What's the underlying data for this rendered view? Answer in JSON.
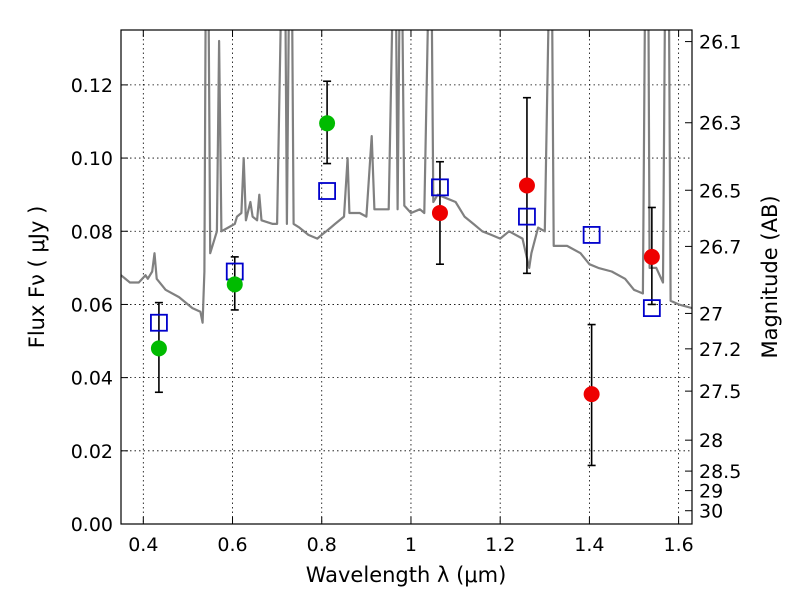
{
  "chart_data": {
    "type": "scatter",
    "title": "",
    "xlabel": "Wavelength  λ (μm)",
    "ylabel": "Flux  Fν  ( μJy )",
    "y2label": "Magnitude (AB)",
    "xlim": [
      0.35,
      1.63
    ],
    "ylim": [
      0.0,
      0.135
    ],
    "grid": true,
    "legend": "none",
    "colors": {
      "template": "#808080",
      "model": "#0000cc",
      "optical": "#00bb00",
      "nir": "#ee0000",
      "errorbar": "#000000"
    },
    "x_ticks": [
      {
        "value": 0.4,
        "label": "0.4"
      },
      {
        "value": 0.6,
        "label": "0.6"
      },
      {
        "value": 0.8,
        "label": "0.8"
      },
      {
        "value": 1.0,
        "label": "1"
      },
      {
        "value": 1.2,
        "label": "1.2"
      },
      {
        "value": 1.4,
        "label": "1.4"
      },
      {
        "value": 1.6,
        "label": "1.6"
      }
    ],
    "y_ticks": [
      {
        "value": 0.0,
        "label": "0.00"
      },
      {
        "value": 0.02,
        "label": "0.02"
      },
      {
        "value": 0.04,
        "label": "0.04"
      },
      {
        "value": 0.06,
        "label": "0.06"
      },
      {
        "value": 0.08,
        "label": "0.08"
      },
      {
        "value": 0.1,
        "label": "0.10"
      },
      {
        "value": 0.12,
        "label": "0.12"
      }
    ],
    "mag_ticks": [
      {
        "value": 26.1,
        "label": "26.1"
      },
      {
        "value": 26.3,
        "label": "26.3"
      },
      {
        "value": 26.5,
        "label": "26.5"
      },
      {
        "value": 26.7,
        "label": "26.7"
      },
      {
        "value": 27.0,
        "label": "27"
      },
      {
        "value": 27.2,
        "label": "27.2"
      },
      {
        "value": 27.5,
        "label": "27.5"
      },
      {
        "value": 28.0,
        "label": "28"
      },
      {
        "value": 28.5,
        "label": "28.5"
      },
      {
        "value": 29.0,
        "label": "29"
      },
      {
        "value": 30.0,
        "label": "30"
      }
    ],
    "template_spectrum": [
      [
        0.35,
        0.068
      ],
      [
        0.37,
        0.066
      ],
      [
        0.39,
        0.066
      ],
      [
        0.405,
        0.068
      ],
      [
        0.41,
        0.067
      ],
      [
        0.42,
        0.069
      ],
      [
        0.425,
        0.074
      ],
      [
        0.43,
        0.067
      ],
      [
        0.45,
        0.064
      ],
      [
        0.48,
        0.062
      ],
      [
        0.51,
        0.059
      ],
      [
        0.528,
        0.058
      ],
      [
        0.533,
        0.055
      ],
      [
        0.537,
        0.069
      ],
      [
        0.54,
        0.15
      ],
      [
        0.546,
        0.15
      ],
      [
        0.55,
        0.074
      ],
      [
        0.565,
        0.08
      ],
      [
        0.57,
        0.132
      ],
      [
        0.575,
        0.08
      ],
      [
        0.59,
        0.081
      ],
      [
        0.605,
        0.082
      ],
      [
        0.61,
        0.084
      ],
      [
        0.62,
        0.085
      ],
      [
        0.625,
        0.1
      ],
      [
        0.63,
        0.083
      ],
      [
        0.64,
        0.088
      ],
      [
        0.645,
        0.084
      ],
      [
        0.655,
        0.083
      ],
      [
        0.66,
        0.09
      ],
      [
        0.665,
        0.083
      ],
      [
        0.69,
        0.082
      ],
      [
        0.7,
        0.082
      ],
      [
        0.71,
        0.15
      ],
      [
        0.718,
        0.15
      ],
      [
        0.722,
        0.082
      ],
      [
        0.727,
        0.15
      ],
      [
        0.733,
        0.15
      ],
      [
        0.737,
        0.082
      ],
      [
        0.75,
        0.081
      ],
      [
        0.77,
        0.079
      ],
      [
        0.79,
        0.078
      ],
      [
        0.8,
        0.079
      ],
      [
        0.81,
        0.08
      ],
      [
        0.82,
        0.081
      ],
      [
        0.83,
        0.082
      ],
      [
        0.85,
        0.084
      ],
      [
        0.858,
        0.1
      ],
      [
        0.862,
        0.085
      ],
      [
        0.885,
        0.085
      ],
      [
        0.9,
        0.084
      ],
      [
        0.912,
        0.106
      ],
      [
        0.918,
        0.086
      ],
      [
        0.93,
        0.086
      ],
      [
        0.95,
        0.086
      ],
      [
        0.96,
        0.15
      ],
      [
        0.966,
        0.15
      ],
      [
        0.97,
        0.086
      ],
      [
        0.975,
        0.15
      ],
      [
        0.98,
        0.15
      ],
      [
        0.985,
        0.087
      ],
      [
        1.0,
        0.085
      ],
      [
        1.02,
        0.086
      ],
      [
        1.03,
        0.085
      ],
      [
        1.04,
        0.15
      ],
      [
        1.046,
        0.15
      ],
      [
        1.05,
        0.088
      ],
      [
        1.06,
        0.09
      ],
      [
        1.08,
        0.089
      ],
      [
        1.1,
        0.088
      ],
      [
        1.12,
        0.084
      ],
      [
        1.14,
        0.082
      ],
      [
        1.16,
        0.08
      ],
      [
        1.18,
        0.079
      ],
      [
        1.2,
        0.078
      ],
      [
        1.22,
        0.08
      ],
      [
        1.25,
        0.078
      ],
      [
        1.265,
        0.07
      ],
      [
        1.27,
        0.074
      ],
      [
        1.285,
        0.081
      ],
      [
        1.3,
        0.08
      ],
      [
        1.31,
        0.15
      ],
      [
        1.316,
        0.15
      ],
      [
        1.32,
        0.076
      ],
      [
        1.35,
        0.076
      ],
      [
        1.38,
        0.074
      ],
      [
        1.4,
        0.071
      ],
      [
        1.42,
        0.07
      ],
      [
        1.45,
        0.069
      ],
      [
        1.48,
        0.067
      ],
      [
        1.5,
        0.064
      ],
      [
        1.52,
        0.063
      ],
      [
        1.525,
        0.15
      ],
      [
        1.532,
        0.15
      ],
      [
        1.535,
        0.07
      ],
      [
        1.55,
        0.07
      ],
      [
        1.565,
        0.066
      ],
      [
        1.57,
        0.15
      ],
      [
        1.578,
        0.15
      ],
      [
        1.582,
        0.061
      ],
      [
        1.6,
        0.06
      ],
      [
        1.63,
        0.059
      ]
    ],
    "model_points": [
      {
        "x": 0.435,
        "y": 0.055
      },
      {
        "x": 0.605,
        "y": 0.069
      },
      {
        "x": 0.812,
        "y": 0.091
      },
      {
        "x": 1.065,
        "y": 0.092
      },
      {
        "x": 1.26,
        "y": 0.084
      },
      {
        "x": 1.405,
        "y": 0.079
      },
      {
        "x": 1.54,
        "y": 0.059
      }
    ],
    "series": [
      {
        "group": "optical",
        "points": [
          {
            "x": 0.435,
            "y": 0.048,
            "ylo": 0.036,
            "yhi": 0.0605
          },
          {
            "x": 0.605,
            "y": 0.0655,
            "ylo": 0.0585,
            "yhi": 0.073
          },
          {
            "x": 0.812,
            "y": 0.1095,
            "ylo": 0.0985,
            "yhi": 0.121
          }
        ]
      },
      {
        "group": "nir",
        "points": [
          {
            "x": 1.065,
            "y": 0.085,
            "ylo": 0.071,
            "yhi": 0.099
          },
          {
            "x": 1.26,
            "y": 0.0925,
            "ylo": 0.0685,
            "yhi": 0.1165
          },
          {
            "x": 1.405,
            "y": 0.0355,
            "ylo": 0.016,
            "yhi": 0.0545
          },
          {
            "x": 1.54,
            "y": 0.073,
            "ylo": 0.06,
            "yhi": 0.0865
          }
        ]
      }
    ]
  }
}
